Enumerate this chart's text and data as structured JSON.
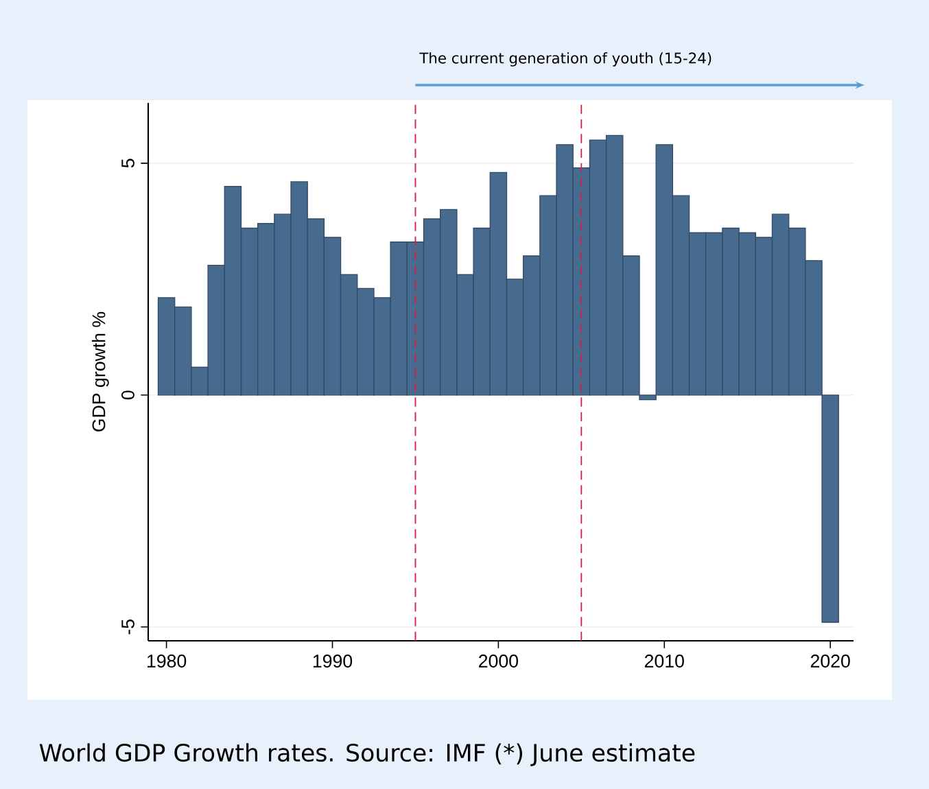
{
  "chart_data": {
    "type": "bar",
    "ylabel": "GDP growth %",
    "x": [
      1980,
      1981,
      1982,
      1983,
      1984,
      1985,
      1986,
      1987,
      1988,
      1989,
      1990,
      1991,
      1992,
      1993,
      1994,
      1995,
      1996,
      1997,
      1998,
      1999,
      2000,
      2001,
      2002,
      2003,
      2004,
      2005,
      2006,
      2007,
      2008,
      2009,
      2010,
      2011,
      2012,
      2013,
      2014,
      2015,
      2016,
      2017,
      2018,
      2019,
      2020
    ],
    "values": [
      2.1,
      1.9,
      0.6,
      2.8,
      4.5,
      3.6,
      3.7,
      3.9,
      4.6,
      3.8,
      3.4,
      2.6,
      2.3,
      2.1,
      3.3,
      3.3,
      3.8,
      4.0,
      2.6,
      3.6,
      4.8,
      2.5,
      3.0,
      4.3,
      5.4,
      4.9,
      5.5,
      5.6,
      3.0,
      -0.1,
      5.4,
      4.3,
      3.5,
      3.5,
      3.6,
      3.5,
      3.4,
      3.9,
      3.6,
      2.9,
      -4.9
    ],
    "color": "#476a8f",
    "xlim": [
      1978.9,
      2021.4
    ],
    "ylim": [
      -5.3,
      6.3
    ],
    "xticks": [
      1980,
      1990,
      2000,
      2010,
      2020
    ],
    "yticks": [
      -5,
      0,
      5
    ],
    "grid": "y",
    "ref_lines": [
      {
        "axis": "x",
        "value": 1995,
        "color": "#d6204b",
        "line_style": "dashed"
      },
      {
        "axis": "x",
        "value": 2005,
        "color": "#d6204b",
        "line_style": "dashed"
      }
    ],
    "annotations": [
      "The current generation of youth (15-24)",
      "World GDP Growth rates. Source: IMF (*) June estimate"
    ]
  }
}
